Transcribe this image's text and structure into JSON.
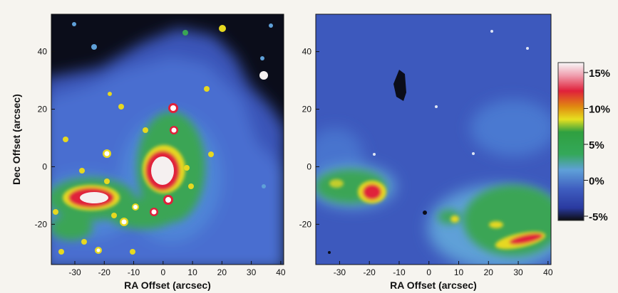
{
  "figure": {
    "y_axis_label": "Dec Offset (arcsec)",
    "left_panel": {
      "x_axis_label": "RA Offset (arcsec)",
      "x_ticks": [
        "-30",
        "-20",
        "-10",
        "0",
        "10",
        "20",
        "30",
        "40"
      ],
      "y_ticks": [
        "40",
        "20",
        "0",
        "-20"
      ]
    },
    "right_panel": {
      "x_axis_label": "RA Offset (arcsec)",
      "x_ticks": [
        "-30",
        "-20",
        "-10",
        "0",
        "10",
        "20",
        "30",
        "40"
      ],
      "y_ticks": [
        "40",
        "20",
        "0",
        "-20"
      ]
    },
    "colorbar": {
      "labels": [
        "15%",
        "10%",
        "5%",
        "0%",
        "-5%"
      ],
      "stops": [
        "#0d0d10",
        "#2a3aa0",
        "#3f5ec0",
        "#5fa0d8",
        "#34a85a",
        "#2fa040",
        "#e6e020",
        "#e08a10",
        "#e0203a",
        "#f0a0b0",
        "#f8f8f8"
      ]
    },
    "colors": {
      "background_dark": "#0b0d1a",
      "map_blue": "#3a55b8",
      "emission_green": "#3aa555",
      "emission_red": "#e0203a",
      "peak_white": "#f5f0f0"
    }
  }
}
